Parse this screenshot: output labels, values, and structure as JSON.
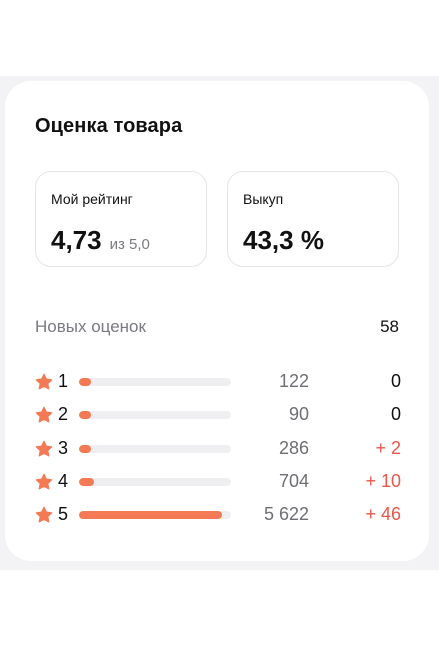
{
  "card": {
    "title": "Оценка товара"
  },
  "stats": {
    "rating": {
      "label": "Мой рейтинг",
      "value": "4,73",
      "sub": "из 5,0"
    },
    "buyout": {
      "label": "Выкуп",
      "value": "43,3 %"
    }
  },
  "new_reviews": {
    "label": "Новых оценок",
    "count": "58"
  },
  "ratings": [
    {
      "level": "1",
      "count": "122",
      "delta": "0",
      "share": 0.02,
      "delta_color": "#111111"
    },
    {
      "level": "2",
      "count": "90",
      "delta": "0",
      "share": 0.02,
      "delta_color": "#111111"
    },
    {
      "level": "3",
      "count": "286",
      "delta": "+ 2",
      "share": 0.04,
      "delta_color": "#e8574a"
    },
    {
      "level": "4",
      "count": "704",
      "delta": "+ 10",
      "share": 0.1,
      "delta_color": "#e8574a"
    },
    {
      "level": "5",
      "count": "5 622",
      "delta": "+ 46",
      "share": 0.94,
      "delta_color": "#e8574a"
    }
  ],
  "colors": {
    "accent": "#f47a55",
    "star": "#f47a55",
    "positive_delta": "#e8574a",
    "track": "#efeff2"
  },
  "icons": {
    "star": "star-icon"
  }
}
